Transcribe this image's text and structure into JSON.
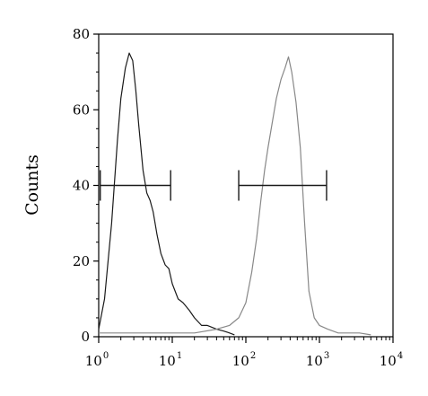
{
  "chart_data": {
    "type": "area",
    "title": "",
    "xlabel": "",
    "ylabel": "Counts",
    "x_scale": "log",
    "xlim": [
      1,
      10000
    ],
    "ylim": [
      0,
      80
    ],
    "y_ticks": [
      0,
      20,
      40,
      60,
      80
    ],
    "y_tick_labels": [
      "0",
      "20",
      "40",
      "60",
      "80"
    ],
    "x_ticks": [
      1,
      10,
      100,
      1000,
      10000
    ],
    "x_tick_labels": [
      {
        "base": "10",
        "exp": "0"
      },
      {
        "base": "10",
        "exp": "1"
      },
      {
        "base": "10",
        "exp": "2"
      },
      {
        "base": "10",
        "exp": "3"
      },
      {
        "base": "10",
        "exp": "4"
      }
    ],
    "grid": false,
    "series": [
      {
        "color": "#1a1a1a",
        "x": [
          1,
          1.2,
          1.5,
          1.8,
          2.0,
          2.3,
          2.6,
          2.9,
          3.2,
          3.5,
          4.0,
          4.5,
          5.0,
          5.5,
          6.2,
          7.0,
          8.0,
          9.0,
          10,
          12,
          14,
          17,
          20,
          25,
          30,
          40,
          50,
          60,
          70
        ],
        "values": [
          2,
          10,
          30,
          52,
          63,
          71,
          75,
          73,
          65,
          56,
          44,
          38,
          36,
          33,
          27,
          22,
          19,
          18,
          14,
          10,
          9,
          7,
          5,
          3,
          3,
          2,
          1.5,
          1,
          0.5
        ]
      },
      {
        "color": "#888888",
        "x": [
          1,
          5,
          10,
          20,
          40,
          60,
          80,
          100,
          120,
          140,
          160,
          180,
          200,
          230,
          260,
          300,
          340,
          380,
          420,
          480,
          550,
          630,
          720,
          850,
          1000,
          1300,
          1800,
          2500,
          3500,
          5000
        ],
        "values": [
          1,
          1,
          1,
          1,
          2,
          3,
          5,
          9,
          17,
          26,
          36,
          44,
          50,
          57,
          63,
          68,
          71,
          74,
          70,
          62,
          50,
          30,
          12,
          5,
          3,
          2,
          1,
          1,
          1,
          0.5
        ]
      }
    ],
    "annotations": [
      {
        "type": "range-marker",
        "x_start": 1.05,
        "x_end": 9.5,
        "y": 40
      },
      {
        "type": "range-marker",
        "x_start": 80,
        "x_end": 1250,
        "y": 40
      }
    ]
  }
}
